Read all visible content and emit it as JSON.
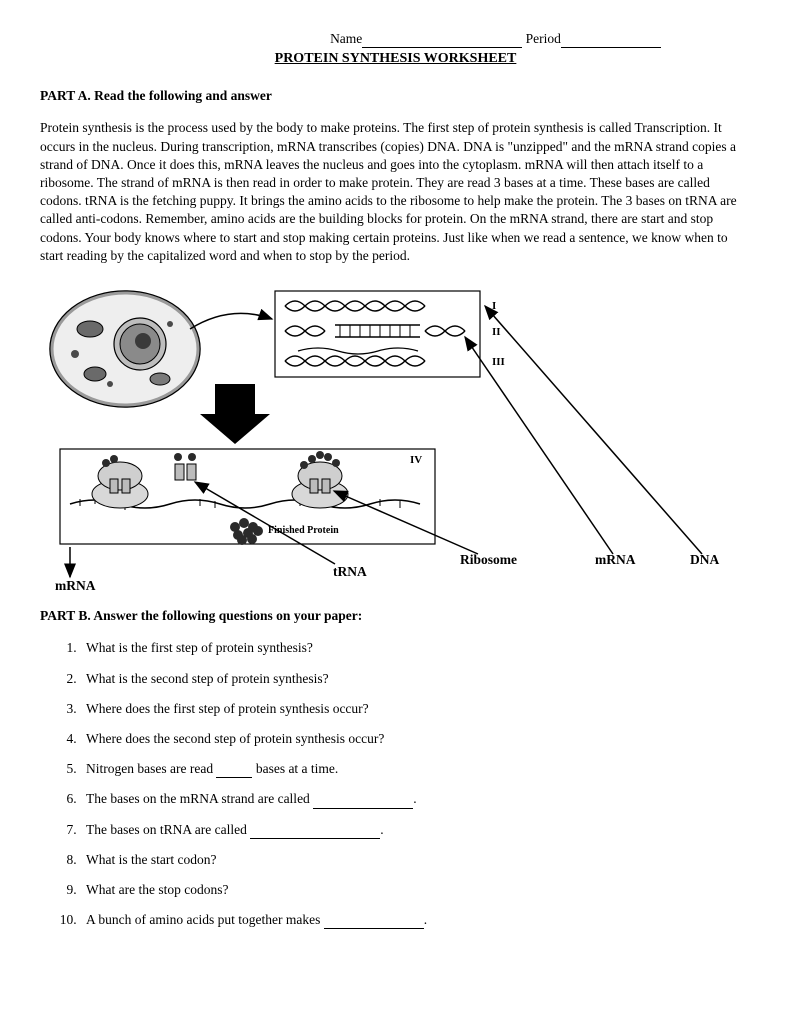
{
  "header": {
    "name_label": "Name",
    "period_label": "Period",
    "title": "PROTEIN SYNTHESIS WORKSHEET"
  },
  "partA": {
    "heading": "PART A. Read the following and answer",
    "text": "Protein synthesis is the process used by the body to make proteins.  The first step of protein synthesis is called Transcription.  It occurs in the nucleus.  During transcription, mRNA transcribes (copies) DNA.  DNA is \"unzipped\" and the mRNA strand copies a strand of DNA.  Once it does this, mRNA leaves the nucleus and goes into the cytoplasm.  mRNA will then attach itself to a ribosome.  The strand of mRNA is then read in order to make protein.  They are read 3 bases at a time.  These bases are called codons.  tRNA is the fetching puppy. It brings the amino acids to the ribosome to help make the protein.  The 3 bases on tRNA are called anti-codons. Remember, amino acids are the building blocks for protein. On the mRNA strand, there are start and stop codons.  Your body knows where to start and stop making certain proteins.  Just like when we read a sentence, we know when to start reading by the capitalized word and when to stop by the period."
  },
  "diagram": {
    "labels": {
      "ribosome": "Ribosome",
      "mrna_right": "mRNA",
      "dna": "DNA",
      "trna": "tRNA",
      "mrna_bottom": "mRNA",
      "finished_protein": "Finished Protein",
      "roman_i": "I",
      "roman_ii": "II",
      "roman_iii": "III",
      "roman_iv": "IV"
    },
    "colors": {
      "stroke": "#000000",
      "fill_light": "#dcdcdc",
      "fill_dark": "#5a5a5a",
      "fill_mid": "#9a9a9a",
      "background": "#ffffff"
    },
    "stroke_width": 1.2,
    "arrow_width": 1.5
  },
  "partB": {
    "heading": "PART B.  Answer the following questions on your paper:",
    "questions": [
      {
        "n": 1,
        "pre": "What is the first step of protein synthesis?",
        "blank": null,
        "post": ""
      },
      {
        "n": 2,
        "pre": "What is the second step of protein synthesis?",
        "blank": null,
        "post": ""
      },
      {
        "n": 3,
        "pre": "Where does the first step of protein synthesis occur?",
        "blank": null,
        "post": ""
      },
      {
        "n": 4,
        "pre": "Where does the second step of protein synthesis occur?",
        "blank": null,
        "post": ""
      },
      {
        "n": 5,
        "pre": " Nitrogen bases are read ",
        "blank": "sm",
        "post": " bases at a time."
      },
      {
        "n": 6,
        "pre": "The bases on the mRNA strand are called ",
        "blank": "md",
        "post": "."
      },
      {
        "n": 7,
        "pre": "The bases on tRNA are called ",
        "blank": "lg",
        "post": "."
      },
      {
        "n": 8,
        "pre": "What is the start codon?",
        "blank": null,
        "post": ""
      },
      {
        "n": 9,
        "pre": "What are the stop codons?",
        "blank": null,
        "post": ""
      },
      {
        "n": 10,
        "pre": "A bunch of amino acids put together makes ",
        "blank": "md",
        "post": "."
      }
    ]
  }
}
